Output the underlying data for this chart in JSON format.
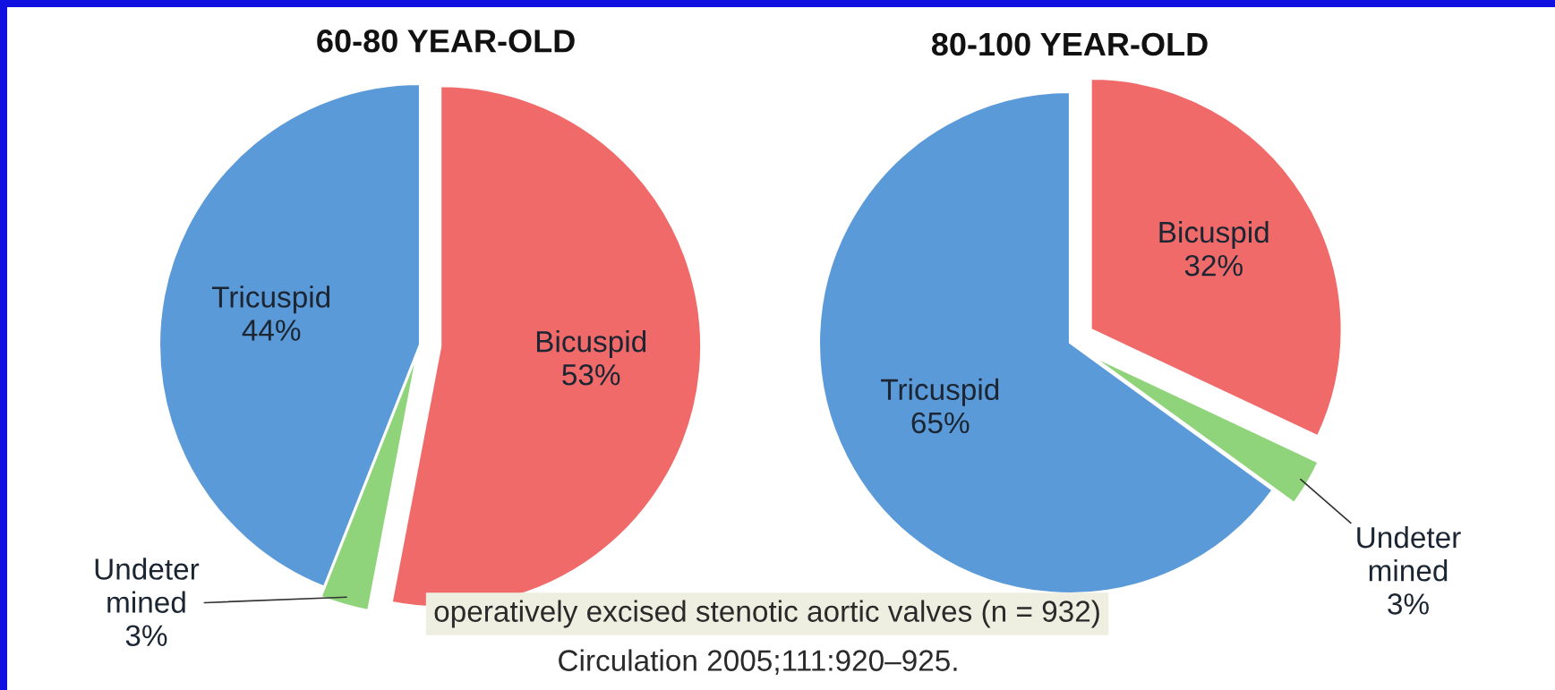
{
  "chart_data": [
    {
      "type": "pie",
      "title": "60-80 YEAR-OLD",
      "categories": [
        "Bicuspid",
        "Undeter\nmined",
        "Tricuspid"
      ],
      "values": [
        53,
        3,
        44
      ],
      "colors": [
        "#f06a6a",
        "#8fd47a",
        "#5b9ad8"
      ],
      "value_labels": [
        "53%",
        "3%",
        "44%"
      ],
      "annotations": [
        "operatively excised stenotic aortic valves (n = 932)",
        "Circulation 2005;111:920–925."
      ]
    },
    {
      "type": "pie",
      "title": "80-100 YEAR-OLD",
      "categories": [
        "Bicuspid",
        "Undeter\nmined",
        "Tricuspid"
      ],
      "values": [
        32,
        3,
        65
      ],
      "colors": [
        "#f06a6a",
        "#8fd47a",
        "#5b9ad8"
      ],
      "value_labels": [
        "32%",
        "3%",
        "65%"
      ]
    }
  ]
}
